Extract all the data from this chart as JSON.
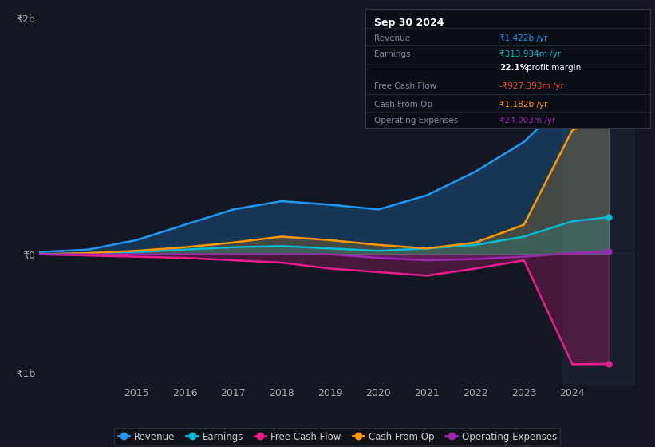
{
  "bg_color": "#131722",
  "plot_bg_color": "#131722",
  "years": [
    2013,
    2014,
    2015,
    2016,
    2017,
    2018,
    2019,
    2020,
    2021,
    2022,
    2023,
    2024,
    2024.75
  ],
  "revenue": [
    0.02,
    0.04,
    0.12,
    0.25,
    0.38,
    0.45,
    0.42,
    0.38,
    0.5,
    0.7,
    0.95,
    1.35,
    1.422
  ],
  "earnings": [
    0.0,
    0.01,
    0.02,
    0.04,
    0.06,
    0.07,
    0.05,
    0.03,
    0.05,
    0.08,
    0.15,
    0.28,
    0.314
  ],
  "free_cash_flow": [
    0.0,
    -0.01,
    -0.02,
    -0.03,
    -0.05,
    -0.07,
    -0.12,
    -0.15,
    -0.18,
    -0.12,
    -0.05,
    -0.93,
    -0.927
  ],
  "cash_from_op": [
    0.0,
    0.01,
    0.03,
    0.06,
    0.1,
    0.15,
    0.12,
    0.08,
    0.05,
    0.1,
    0.25,
    1.05,
    1.182
  ],
  "op_expenses": [
    0.0,
    0.0,
    0.0,
    0.0,
    0.0,
    0.0,
    0.0,
    -0.03,
    -0.05,
    -0.04,
    -0.02,
    0.01,
    0.024
  ],
  "ylim": [
    -1.1,
    2.0
  ],
  "yticks_labels": [
    "₹2b",
    "₹0",
    "-₹1b"
  ],
  "yticks_values": [
    2.0,
    0.0,
    -1.0
  ],
  "xticks": [
    2015,
    2016,
    2017,
    2018,
    2019,
    2020,
    2021,
    2022,
    2023,
    2024
  ],
  "revenue_color": "#2196f3",
  "earnings_color": "#00bcd4",
  "free_cash_flow_color": "#e91e8c",
  "cash_from_op_color": "#ff9800",
  "op_expenses_color": "#9c27b0",
  "box_date": "Sep 30 2024",
  "box_rows": [
    {
      "label": "Revenue",
      "value": "₹1.422b /yr",
      "value_color": "#2196f3",
      "extra": null
    },
    {
      "label": "Earnings",
      "value": "₹313.934m /yr",
      "value_color": "#00bcd4",
      "extra": null
    },
    {
      "label": "",
      "value": "",
      "value_color": "#ffffff",
      "extra": "22.1% profit margin"
    },
    {
      "label": "Free Cash Flow",
      "value": "-₹927.393m /yr",
      "value_color": "#f44336",
      "extra": null
    },
    {
      "label": "Cash From Op",
      "value": "₹1.182b /yr",
      "value_color": "#ff9800",
      "extra": null
    },
    {
      "label": "Operating Expenses",
      "value": "₹24.003m /yr",
      "value_color": "#9c27b0",
      "extra": null
    }
  ],
  "legend_labels": [
    "Revenue",
    "Earnings",
    "Free Cash Flow",
    "Cash From Op",
    "Operating Expenses"
  ]
}
